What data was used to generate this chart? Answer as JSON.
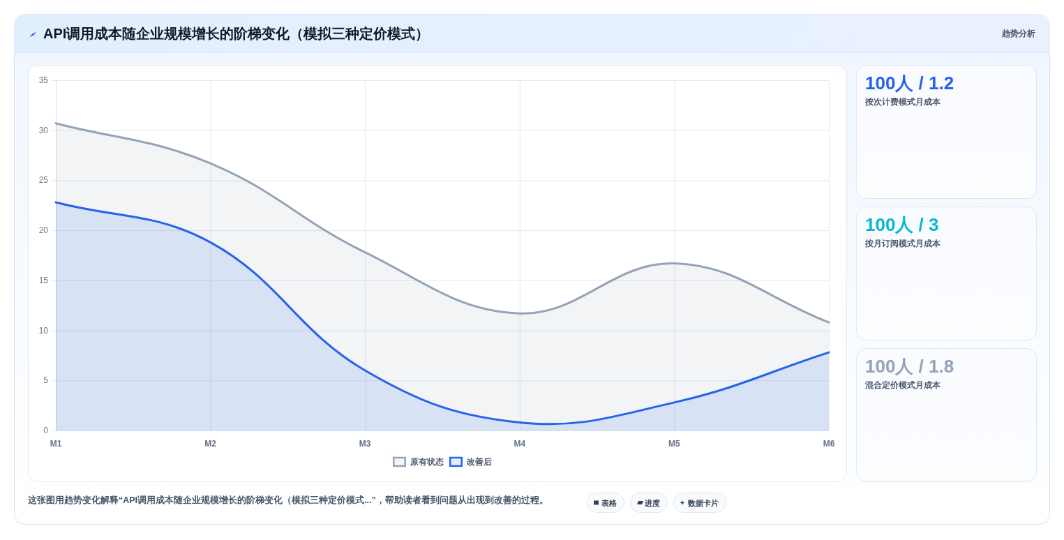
{
  "chart_data": [
    {
      "type": "area",
      "title": "API调用成本随企业规模增长的阶梯变化（模拟三种定价模式）",
      "categories": [
        "M1",
        "M2",
        "M3",
        "M4",
        "M5",
        "M6"
      ],
      "series": [
        {
          "name": "原有状态",
          "color": "#94a3b8",
          "values": [
            30.7,
            26.7,
            17.8,
            11.7,
            16.7,
            10.8
          ]
        },
        {
          "name": "改善后",
          "color": "#2563eb",
          "values": [
            22.8,
            18.8,
            6,
            0.8,
            2.8,
            7.8
          ]
        }
      ],
      "ylim": [
        0,
        35
      ],
      "yticks": [
        0,
        5,
        10,
        15,
        20,
        25,
        30,
        35
      ],
      "grid": true,
      "legend": "bottom",
      "annotations": [
        "这张图用趋势变化解释“API调用成本随企业规模增长的阶梯变化（模拟三种定价模式...”，帮助读者看到问题从出现到改善的过程。",
        "表格",
        "进度",
        "数据卡片"
      ]
    },
    {
      "type": "other",
      "title": "趋势分析",
      "annotations": [
        "100人 / 1.2",
        "按次计费模式月成本"
      ]
    },
    {
      "type": "other",
      "annotations": [
        "100人 / 3",
        "按月订阅模式月成本"
      ]
    },
    {
      "type": "other",
      "annotations": [
        "100人 / 1.8",
        "混合定价模式月成本"
      ]
    }
  ]
}
